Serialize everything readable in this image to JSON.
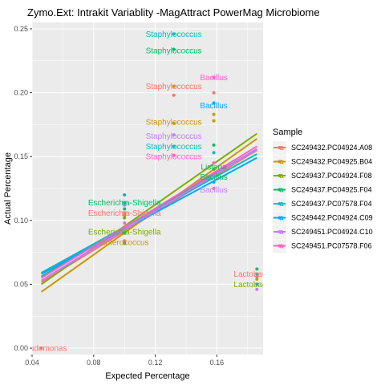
{
  "chart_data": {
    "type": "scatter",
    "title": "Zymo.Ext: Intrakit Variablity -MagAttract PowerMag Microbiome",
    "xlabel": "Expected Percentage",
    "ylabel": "Actual Percentage",
    "xlim": [
      0.04,
      0.19
    ],
    "ylim": [
      -0.005,
      0.255
    ],
    "x_ticks": [
      0.04,
      0.08,
      0.12,
      0.16
    ],
    "x_tick_labels": [
      "0.04",
      "0.08",
      "0.12",
      "0.16"
    ],
    "y_ticks": [
      0.0,
      0.05,
      0.1,
      0.15,
      0.2,
      0.25
    ],
    "y_tick_labels": [
      "0.00",
      "0.05",
      "0.10",
      "0.15",
      "0.20",
      "0.25"
    ],
    "grid": true,
    "legend": {
      "title": "Sample",
      "position": "right"
    },
    "series": [
      {
        "name": "SC249432.PC04924.A08",
        "color": "#F8766D",
        "fit": [
          0.0517,
          0.155
        ]
      },
      {
        "name": "SC249432.PC04925.B04",
        "color": "#CD9600",
        "fit": [
          0.044,
          0.164
        ]
      },
      {
        "name": "SC249437.PC04924.F08",
        "color": "#7CAE00",
        "fit": [
          0.05,
          0.168
        ]
      },
      {
        "name": "SC249437.PC04925.F04",
        "color": "#00BE67",
        "fit": [
          0.056,
          0.156
        ]
      },
      {
        "name": "SC249437.PC07578.F04",
        "color": "#00BFC4",
        "fit": [
          0.059,
          0.152
        ]
      },
      {
        "name": "SC249442.PC04924.C09",
        "color": "#00A9FF",
        "fit": [
          0.058,
          0.149
        ]
      },
      {
        "name": "SC249451.PC04924.C10",
        "color": "#C77CFF",
        "fit": [
          0.053,
          0.156
        ]
      },
      {
        "name": "SC249451.PC07578.F06",
        "color": "#FF61CC",
        "fit": [
          0.055,
          0.158
        ]
      }
    ],
    "points": [
      {
        "x": 0.046,
        "y": 0.0,
        "s": 0
      },
      {
        "x": 0.1,
        "y": 0.106,
        "s": 0
      },
      {
        "x": 0.1,
        "y": 0.104,
        "s": 1
      },
      {
        "x": 0.1,
        "y": 0.102,
        "s": 2
      },
      {
        "x": 0.1,
        "y": 0.109,
        "s": 3
      },
      {
        "x": 0.1,
        "y": 0.114,
        "s": 4
      },
      {
        "x": 0.1,
        "y": 0.12,
        "s": 5
      },
      {
        "x": 0.1,
        "y": 0.112,
        "s": 6
      },
      {
        "x": 0.1,
        "y": 0.098,
        "s": 7
      },
      {
        "x": 0.1,
        "y": 0.09,
        "s": 3
      },
      {
        "x": 0.1,
        "y": 0.084,
        "s": 0
      },
      {
        "x": 0.1,
        "y": 0.083,
        "s": 1
      },
      {
        "x": 0.1,
        "y": 0.082,
        "s": 4
      },
      {
        "x": 0.132,
        "y": 0.246,
        "s": 4
      },
      {
        "x": 0.132,
        "y": 0.234,
        "s": 3
      },
      {
        "x": 0.132,
        "y": 0.205,
        "s": 1
      },
      {
        "x": 0.132,
        "y": 0.198,
        "s": 0
      },
      {
        "x": 0.132,
        "y": 0.176,
        "s": 1
      },
      {
        "x": 0.132,
        "y": 0.167,
        "s": 6
      },
      {
        "x": 0.132,
        "y": 0.158,
        "s": 4
      },
      {
        "x": 0.132,
        "y": 0.151,
        "s": 7
      },
      {
        "x": 0.158,
        "y": 0.212,
        "s": 7
      },
      {
        "x": 0.158,
        "y": 0.2,
        "s": 0
      },
      {
        "x": 0.158,
        "y": 0.192,
        "s": 5
      },
      {
        "x": 0.158,
        "y": 0.183,
        "s": 1
      },
      {
        "x": 0.158,
        "y": 0.178,
        "s": 1
      },
      {
        "x": 0.158,
        "y": 0.159,
        "s": 3
      },
      {
        "x": 0.158,
        "y": 0.153,
        "s": 4
      },
      {
        "x": 0.158,
        "y": 0.145,
        "s": 7
      },
      {
        "x": 0.158,
        "y": 0.14,
        "s": 2
      },
      {
        "x": 0.158,
        "y": 0.134,
        "s": 6
      },
      {
        "x": 0.158,
        "y": 0.13,
        "s": 5
      },
      {
        "x": 0.158,
        "y": 0.125,
        "s": 0
      },
      {
        "x": 0.186,
        "y": 0.062,
        "s": 3
      },
      {
        "x": 0.186,
        "y": 0.058,
        "s": 4
      },
      {
        "x": 0.186,
        "y": 0.056,
        "s": 0
      },
      {
        "x": 0.186,
        "y": 0.054,
        "s": 1
      },
      {
        "x": 0.186,
        "y": 0.05,
        "s": 5
      },
      {
        "x": 0.186,
        "y": 0.046,
        "s": 6
      }
    ],
    "annotations": [
      {
        "text": "Staphylococcus",
        "x": 0.132,
        "y": 0.246,
        "s": 4
      },
      {
        "text": "Staphylococcus",
        "x": 0.132,
        "y": 0.233,
        "s": 3
      },
      {
        "text": "Bacillus",
        "x": 0.158,
        "y": 0.212,
        "s": 7
      },
      {
        "text": "Staphylococcus",
        "x": 0.132,
        "y": 0.205,
        "s": 0
      },
      {
        "text": "Bacillus",
        "x": 0.158,
        "y": 0.19,
        "s": 5
      },
      {
        "text": "Staphylococcus",
        "x": 0.132,
        "y": 0.177,
        "s": 1
      },
      {
        "text": "Staphylococcus",
        "x": 0.132,
        "y": 0.166,
        "s": 6
      },
      {
        "text": "Staphylococcus",
        "x": 0.132,
        "y": 0.158,
        "s": 4
      },
      {
        "text": "Staphylococcus",
        "x": 0.132,
        "y": 0.15,
        "s": 7
      },
      {
        "text": "Listeria",
        "x": 0.158,
        "y": 0.142,
        "s": 3
      },
      {
        "text": "Bacillus",
        "x": 0.158,
        "y": 0.134,
        "s": 3
      },
      {
        "text": "Bacillus",
        "x": 0.158,
        "y": 0.124,
        "s": 6
      },
      {
        "text": "Escherichia-Shigella",
        "x": 0.1,
        "y": 0.114,
        "s": 3
      },
      {
        "text": "Escherichia-Shigella",
        "x": 0.1,
        "y": 0.106,
        "s": 0
      },
      {
        "text": "Escherichia-Shigella",
        "x": 0.1,
        "y": 0.091,
        "s": 2
      },
      {
        "text": "Enterococcus",
        "x": 0.1,
        "y": 0.083,
        "s": 1
      },
      {
        "text": "Lactobacillus",
        "x": 0.186,
        "y": 0.058,
        "s": 0
      },
      {
        "text": "Lactobacillus",
        "x": 0.186,
        "y": 0.05,
        "s": 2
      },
      {
        "text": "Pseudomonas",
        "x": 0.046,
        "y": 0.0,
        "s": 0
      }
    ]
  }
}
